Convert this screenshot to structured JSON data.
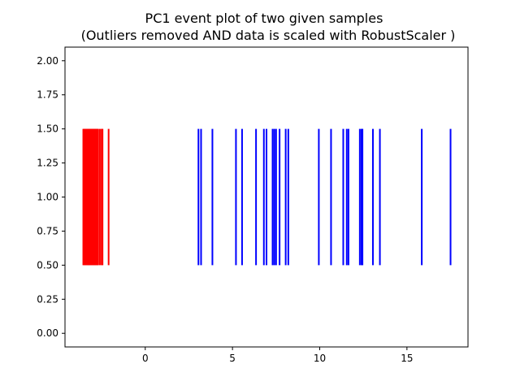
{
  "chart_data": {
    "type": "eventplot",
    "title": "PC1 event plot of two given samples",
    "subtitle": "(Outliers removed AND data is scaled with RobustScaler )",
    "xlim": [
      -4.6,
      18.5
    ],
    "ylim": [
      -0.1,
      2.1
    ],
    "x_ticks": [
      0,
      5,
      10,
      15
    ],
    "x_tick_labels": [
      "0",
      "5",
      "10",
      "15"
    ],
    "y_ticks": [
      0.0,
      0.25,
      0.5,
      0.75,
      1.0,
      1.25,
      1.5,
      1.75,
      2.0
    ],
    "y_tick_labels": [
      "0.00",
      "0.25",
      "0.50",
      "0.75",
      "1.00",
      "1.25",
      "1.50",
      "1.75",
      "2.00"
    ],
    "grid": false,
    "series": [
      {
        "color": "#ff0000",
        "line_offset": 1.0,
        "line_length": 1.0,
        "positions": [
          -3.55,
          -3.5,
          -3.45,
          -3.4,
          -3.35,
          -3.3,
          -3.25,
          -3.2,
          -3.15,
          -3.1,
          -3.05,
          -3.0,
          -2.95,
          -2.9,
          -2.85,
          -2.8,
          -2.75,
          -2.7,
          -2.6,
          -2.5,
          -2.45,
          -2.1
        ]
      },
      {
        "color": "#0000ff",
        "line_offset": 1.0,
        "line_length": 1.0,
        "positions": [
          3.05,
          3.2,
          3.85,
          5.2,
          5.55,
          6.35,
          6.8,
          6.95,
          7.3,
          7.4,
          7.5,
          7.7,
          8.05,
          8.2,
          9.95,
          10.65,
          11.35,
          11.55,
          11.65,
          12.3,
          12.4,
          12.45,
          13.05,
          13.45,
          15.85,
          17.5
        ]
      }
    ]
  }
}
